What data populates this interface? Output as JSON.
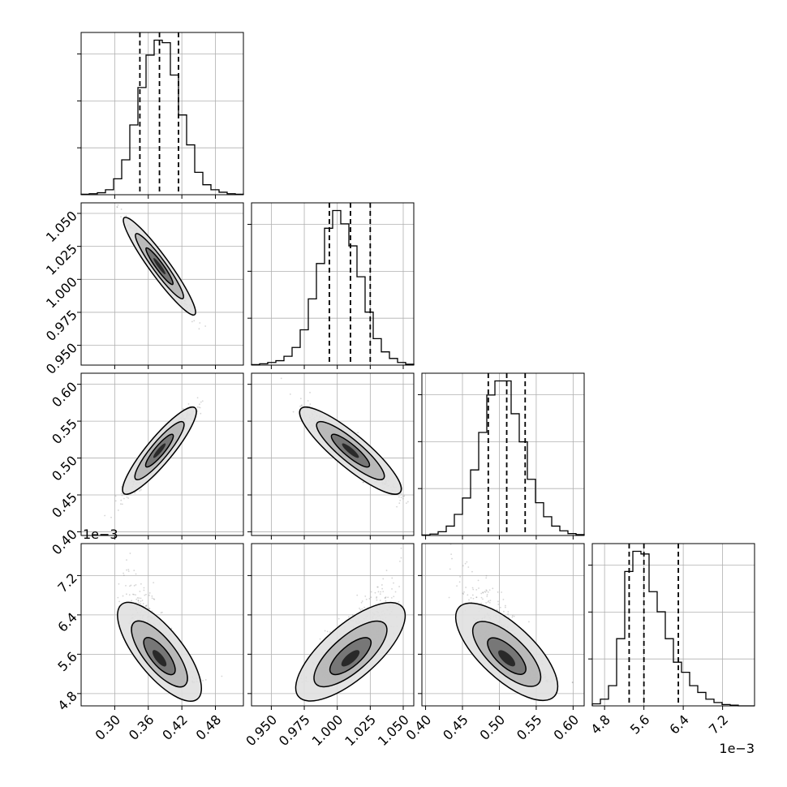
{
  "chart_data": {
    "type": "corner",
    "grid": true,
    "n_params": 4,
    "params": [
      {
        "range": [
          0.24,
          0.53
        ],
        "ticks": [
          "0.30",
          "0.36",
          "0.42",
          "0.48"
        ],
        "tick_values": [
          0.3,
          0.36,
          0.42,
          0.48
        ],
        "quantiles": [
          0.345,
          0.38,
          0.414
        ],
        "mean": 0.38,
        "sd": 0.026
      },
      {
        "range": [
          0.935,
          1.058
        ],
        "ticks": [
          "0.950",
          "0.975",
          "1.000",
          "1.025",
          "1.050"
        ],
        "tick_values": [
          0.95,
          0.975,
          1.0,
          1.025,
          1.05
        ],
        "quantiles": [
          0.994,
          1.01,
          1.025
        ],
        "mean": 1.01,
        "sd": 0.0155
      },
      {
        "range": [
          0.395,
          0.615
        ],
        "ticks": [
          "0.40",
          "0.45",
          "0.50",
          "0.55",
          "0.60"
        ],
        "tick_values": [
          0.4,
          0.45,
          0.5,
          0.55,
          0.6
        ],
        "quantiles": [
          0.485,
          0.51,
          0.535
        ],
        "mean": 0.51,
        "sd": 0.025
      },
      {
        "range": [
          4.55,
          7.85
        ],
        "ticks": [
          "4.8",
          "5.6",
          "6.4",
          "7.2"
        ],
        "tick_values": [
          4.8,
          5.6,
          6.4,
          7.2
        ],
        "quantiles": [
          5.3,
          5.6,
          6.3
        ],
        "mean": 5.65,
        "sd": 0.45,
        "offset_label": "1e−3"
      }
    ],
    "histograms": [
      [
        1,
        2,
        4,
        10,
        32,
        70,
        140,
        215,
        280,
        310,
        305,
        240,
        160,
        100,
        45,
        20,
        10,
        5,
        2,
        1
      ],
      [
        1,
        3,
        6,
        10,
        20,
        40,
        80,
        150,
        230,
        310,
        350,
        320,
        270,
        200,
        120,
        60,
        30,
        15,
        6,
        2
      ],
      [
        1,
        3,
        8,
        20,
        45,
        80,
        140,
        220,
        300,
        330,
        330,
        260,
        200,
        120,
        70,
        40,
        20,
        10,
        4,
        2
      ],
      [
        3,
        10,
        30,
        100,
        200,
        230,
        226,
        170,
        140,
        100,
        65,
        50,
        30,
        20,
        10,
        5,
        2,
        1,
        0,
        0
      ]
    ],
    "pair_correlations": [
      {
        "row": 1,
        "col": 0,
        "rho": -0.98
      },
      {
        "row": 2,
        "col": 0,
        "rho": 0.95
      },
      {
        "row": 2,
        "col": 1,
        "rho": -0.93
      },
      {
        "row": 3,
        "col": 0,
        "rho": -0.82
      },
      {
        "row": 3,
        "col": 1,
        "rho": 0.8
      },
      {
        "row": 3,
        "col": 2,
        "rho": -0.78
      }
    ],
    "colors": {
      "line": "#000000",
      "grid": "#b0b0b0",
      "points": "#888888"
    }
  }
}
